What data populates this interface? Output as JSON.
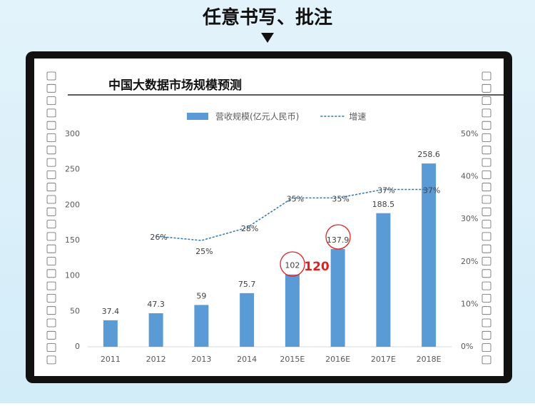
{
  "page": {
    "heading": "任意书写、批注"
  },
  "chart_data": {
    "type": "bar",
    "title": "中国大数据市场规模预测",
    "categories": [
      "2011",
      "2012",
      "2013",
      "2014",
      "2015E",
      "2016E",
      "2017E",
      "2018E"
    ],
    "series": [
      {
        "name": "营收规模(亿元人民币)",
        "type": "bar",
        "color": "#5b9bd5",
        "values": [
          37.4,
          47.3,
          59,
          75.7,
          102,
          137.9,
          188.5,
          258.6
        ]
      },
      {
        "name": "增速",
        "type": "line",
        "axis": "y2",
        "color": "#2e75b6",
        "values": [
          null,
          26,
          25,
          28,
          35,
          35,
          37,
          37
        ],
        "value_labels": [
          null,
          "26%",
          "25%",
          "28%",
          "35%",
          "35%",
          "37%",
          "37%"
        ]
      }
    ],
    "ylim": [
      0,
      300
    ],
    "yticks": [
      0,
      50,
      100,
      150,
      200,
      250,
      300
    ],
    "y2lim": [
      0,
      50
    ],
    "y2ticks": [
      {
        "value": 0,
        "label": "0%"
      },
      {
        "value": 10,
        "label": "10%"
      },
      {
        "value": 20,
        "label": "20%"
      },
      {
        "value": 30,
        "label": "30%"
      },
      {
        "value": 40,
        "label": "40%"
      },
      {
        "value": 50,
        "label": "50%"
      }
    ],
    "legend": "top",
    "annotations": [
      "120"
    ]
  }
}
